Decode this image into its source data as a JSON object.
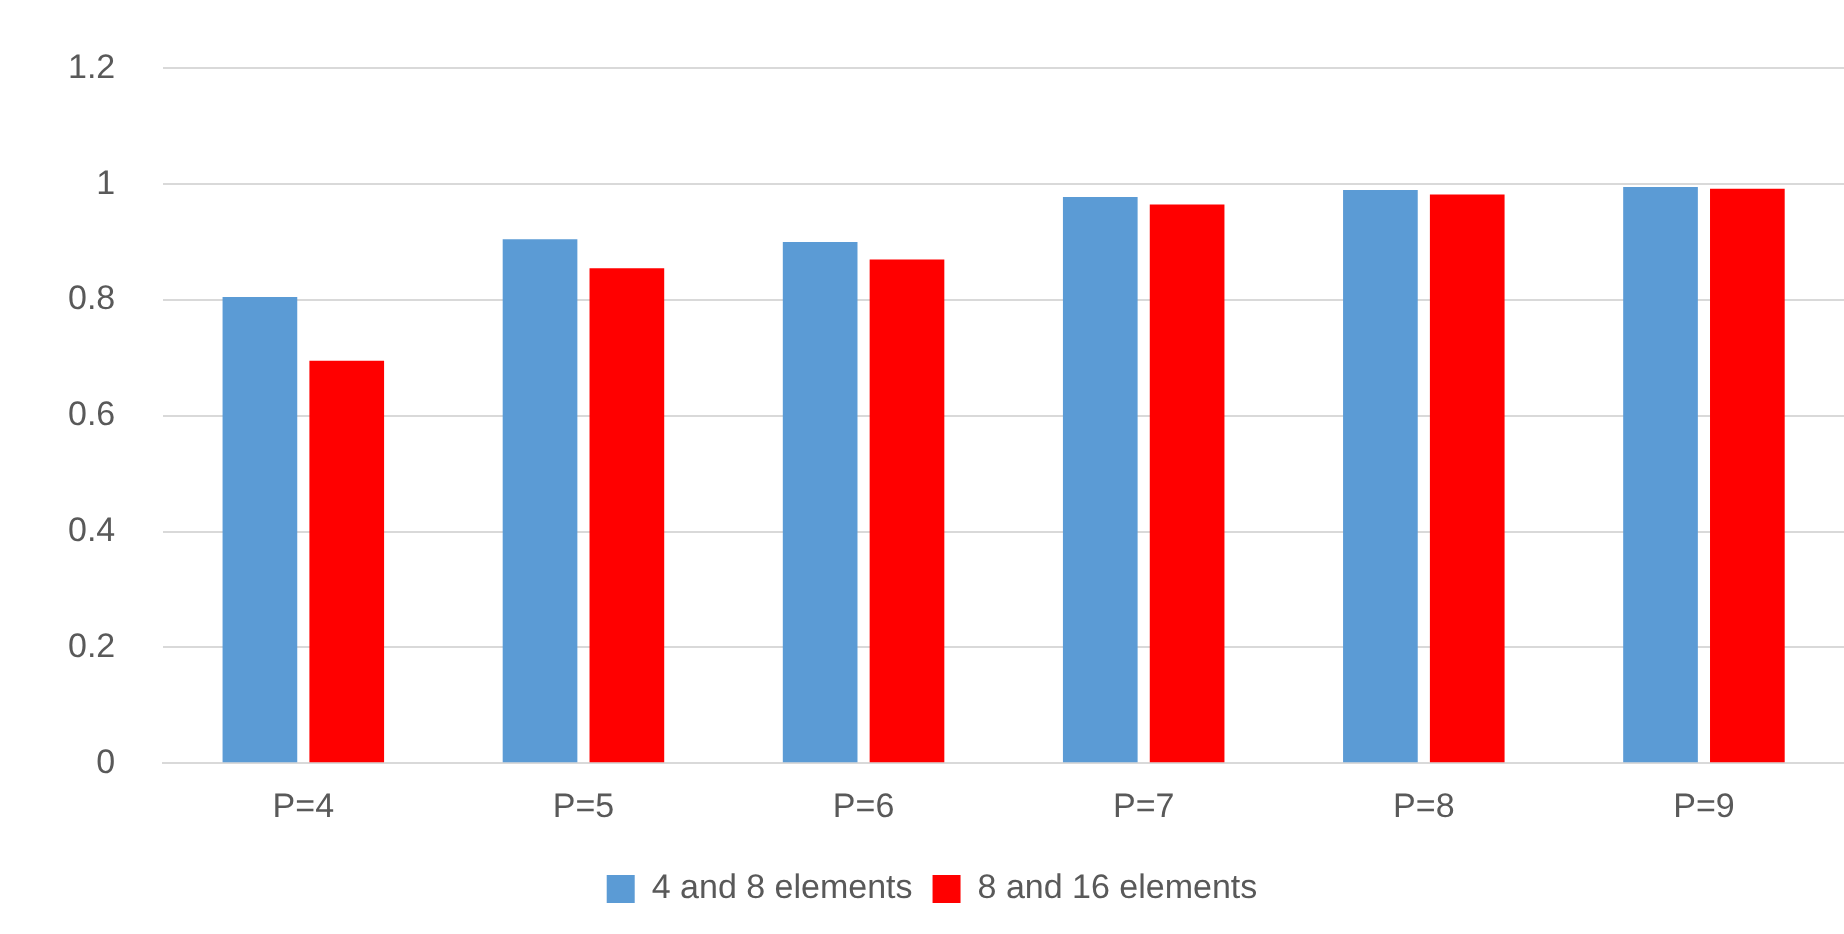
{
  "chart_data": {
    "type": "bar",
    "categories": [
      "P=4",
      "P=5",
      "P=6",
      "P=7",
      "P=8",
      "P=9"
    ],
    "series": [
      {
        "name": "4 and 8 elements",
        "color": "#5b9bd5",
        "values": [
          0.805,
          0.905,
          0.9,
          0.978,
          0.99,
          0.995
        ]
      },
      {
        "name": "8 and 16 elements",
        "color": "#ff0000",
        "values": [
          0.695,
          0.855,
          0.87,
          0.965,
          0.982,
          0.992
        ]
      }
    ],
    "ylim": [
      0,
      1.2
    ],
    "yticks": [
      0,
      0.2,
      0.4,
      0.6,
      0.8,
      1,
      1.2
    ],
    "grid": "y",
    "legend": "bottom"
  }
}
